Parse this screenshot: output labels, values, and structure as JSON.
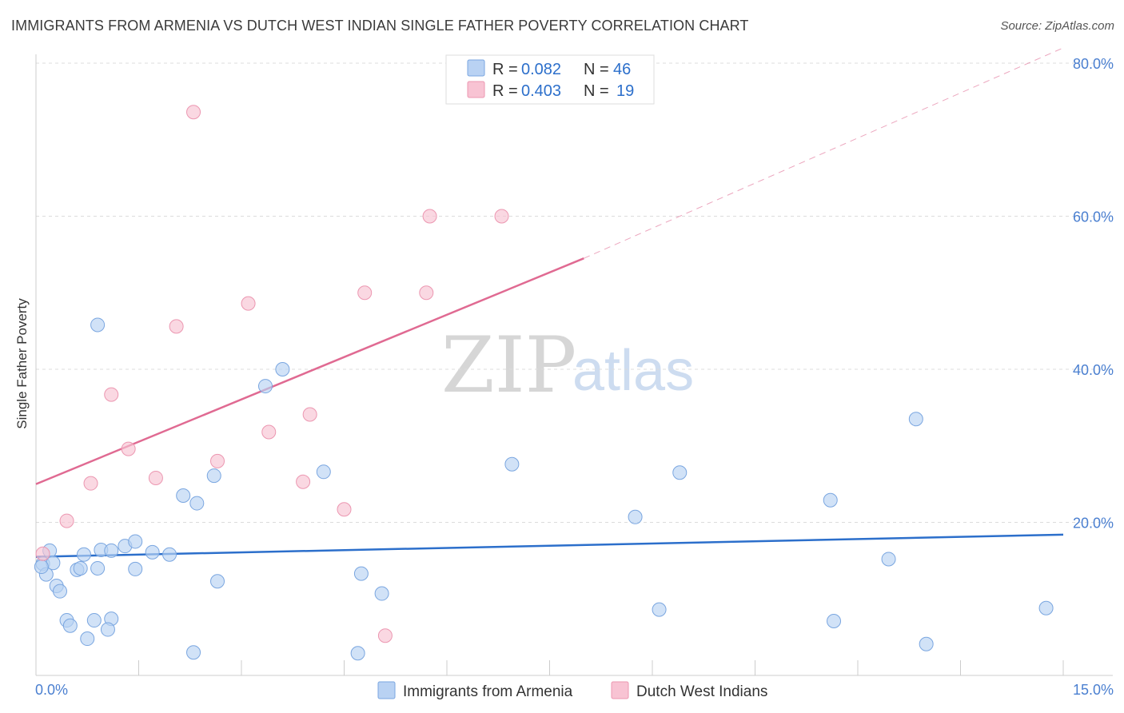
{
  "title": "IMMIGRANTS FROM ARMENIA VS DUTCH WEST INDIAN SINGLE FATHER POVERTY CORRELATION CHART",
  "source": "Source: ZipAtlas.com",
  "watermark": {
    "zip": "ZIP",
    "atlas": "atlas"
  },
  "colors": {
    "blue_fill": "#b9d2f3",
    "blue_stroke": "#7aa6e0",
    "blue_line": "#2c6fcb",
    "pink_fill": "#f8c3d3",
    "pink_stroke": "#ec97b1",
    "pink_line": "#e06a92",
    "axis_text": "#4a7fd0"
  },
  "legend_top": [
    {
      "r_label": "R =",
      "r": "0.082",
      "n_label": "N =",
      "n": "46"
    },
    {
      "r_label": "R =",
      "r": "0.403",
      "n_label": "N =",
      "n": "19"
    }
  ],
  "chart_data": {
    "type": "scatter",
    "title": "IMMIGRANTS FROM ARMENIA VS DUTCH WEST INDIAN SINGLE FATHER POVERTY CORRELATION CHART",
    "xlabel": "",
    "ylabel": "Single Father Poverty",
    "xlim": [
      0,
      15
    ],
    "ylim": [
      0,
      80
    ],
    "x_tick_labels": [
      "0.0%",
      "15.0%"
    ],
    "y_ticks": [
      20,
      40,
      60,
      80
    ],
    "y_tick_labels": [
      "20.0%",
      "40.0%",
      "60.0%",
      "80.0%"
    ],
    "grid": true,
    "legend_position": "bottom",
    "series": [
      {
        "name": "Immigrants from Armenia",
        "color": "#b9d2f3",
        "points": [
          [
            0.1,
            14.6
          ],
          [
            0.2,
            16.3
          ],
          [
            0.25,
            14.7
          ],
          [
            0.3,
            11.7
          ],
          [
            0.35,
            11.0
          ],
          [
            0.45,
            7.2
          ],
          [
            0.5,
            6.5
          ],
          [
            0.6,
            13.8
          ],
          [
            0.65,
            14.0
          ],
          [
            0.7,
            15.8
          ],
          [
            0.75,
            4.8
          ],
          [
            0.85,
            7.2
          ],
          [
            0.9,
            14.0
          ],
          [
            0.95,
            16.4
          ],
          [
            1.1,
            16.3
          ],
          [
            1.1,
            7.4
          ],
          [
            1.05,
            6.0
          ],
          [
            1.3,
            16.9
          ],
          [
            1.45,
            17.5
          ],
          [
            1.45,
            13.9
          ],
          [
            1.7,
            16.1
          ],
          [
            1.95,
            15.8
          ],
          [
            2.15,
            23.5
          ],
          [
            2.3,
            3.0
          ],
          [
            2.35,
            22.5
          ],
          [
            2.6,
            26.1
          ],
          [
            2.65,
            12.3
          ],
          [
            0.15,
            13.2
          ],
          [
            0.08,
            14.2
          ],
          [
            0.9,
            45.8
          ],
          [
            3.35,
            37.8
          ],
          [
            3.6,
            40.0
          ],
          [
            4.2,
            26.6
          ],
          [
            4.7,
            2.9
          ],
          [
            4.75,
            13.3
          ],
          [
            5.05,
            10.7
          ],
          [
            6.95,
            27.6
          ],
          [
            8.75,
            20.7
          ],
          [
            9.1,
            8.6
          ],
          [
            9.4,
            26.5
          ],
          [
            11.6,
            22.9
          ],
          [
            11.65,
            7.1
          ],
          [
            12.45,
            15.2
          ],
          [
            12.85,
            33.5
          ],
          [
            13.0,
            4.1
          ],
          [
            14.75,
            8.8
          ]
        ]
      },
      {
        "name": "Dutch West Indians",
        "color": "#f8c3d3",
        "points": [
          [
            0.1,
            15.9
          ],
          [
            0.45,
            20.2
          ],
          [
            0.8,
            25.1
          ],
          [
            1.1,
            36.7
          ],
          [
            1.35,
            29.6
          ],
          [
            1.75,
            25.8
          ],
          [
            2.05,
            45.6
          ],
          [
            2.3,
            73.6
          ],
          [
            2.65,
            28.0
          ],
          [
            3.1,
            48.6
          ],
          [
            3.4,
            31.8
          ],
          [
            3.9,
            25.3
          ],
          [
            4.0,
            34.1
          ],
          [
            4.5,
            21.7
          ],
          [
            4.8,
            50.0
          ],
          [
            5.1,
            5.2
          ],
          [
            5.7,
            50.0
          ],
          [
            5.75,
            60.0
          ],
          [
            6.8,
            60.0
          ]
        ]
      }
    ],
    "trend_lines": [
      {
        "series": "Immigrants from Armenia",
        "x0": 0,
        "y0": 15.5,
        "x1": 15,
        "y1": 18.4,
        "extend_dashed_to": null
      },
      {
        "series": "Dutch West Indians",
        "x0": 0,
        "y0": 25.0,
        "x1": 8.0,
        "y1": 54.5,
        "extend_dashed_to": [
          15,
          82.0
        ]
      }
    ]
  }
}
